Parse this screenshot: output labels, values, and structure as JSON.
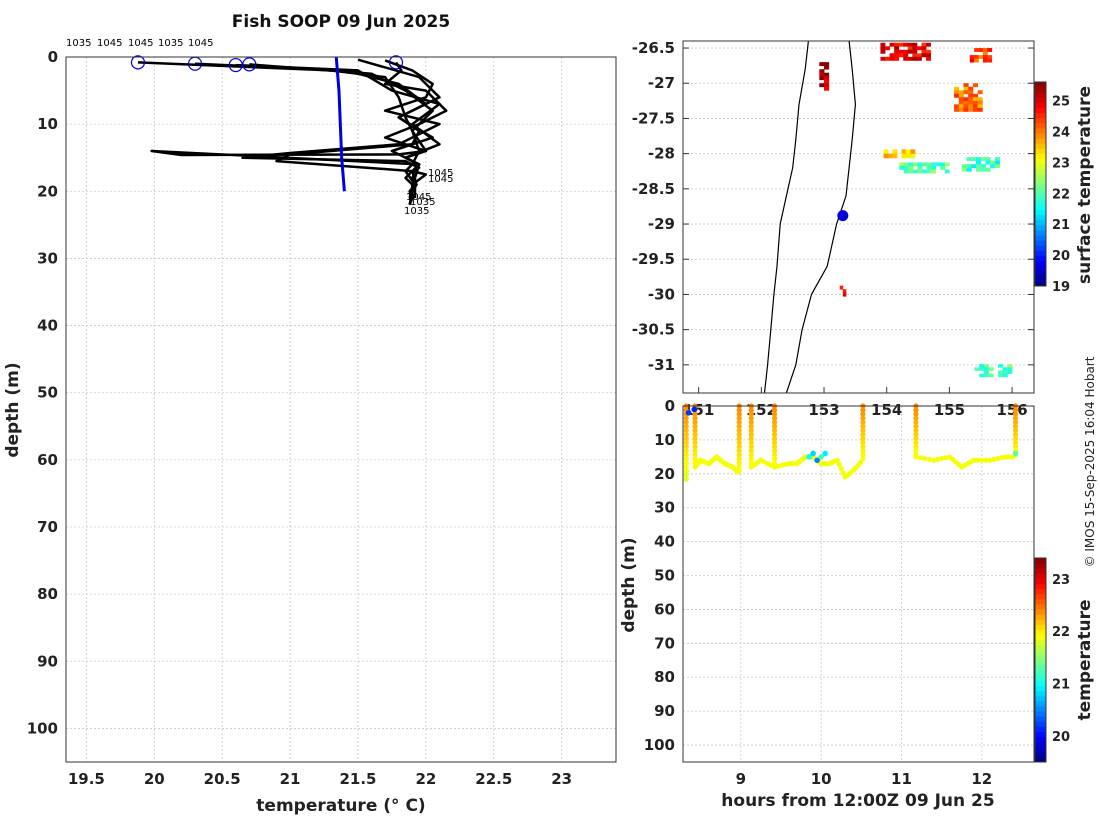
{
  "chart_data": [
    {
      "type": "line",
      "title": "Fish SOOP 09 Jun 2025",
      "xlabel": "temperature (° C)",
      "ylabel": "depth (m)",
      "xlim": [
        19.35,
        23.4
      ],
      "ylim": [
        105,
        0
      ],
      "xticks": [
        "19.5",
        "20",
        "20.5",
        "21",
        "21.5",
        "22",
        "22.5",
        "23"
      ],
      "yticks": [
        "0",
        "10",
        "20",
        "30",
        "40",
        "50",
        "60",
        "70",
        "80",
        "90",
        "100"
      ],
      "top_labels": [
        "1035",
        "1045",
        "1045",
        "1035",
        "1045"
      ],
      "end_labels": [
        "1045",
        "1045",
        "1035",
        "1045",
        "1035"
      ],
      "profiles": [
        {
          "name": "profile-1",
          "x": [
            19.88,
            21.3,
            21.7,
            21.8,
            21.85,
            21.9,
            21.95,
            21.9,
            21.85,
            21.92,
            21.88,
            21.9,
            21.88
          ],
          "y": [
            0.8,
            2,
            3,
            6,
            9,
            11,
            14,
            16,
            17,
            19,
            20,
            21,
            22
          ]
        },
        {
          "name": "profile-2",
          "x": [
            20.3,
            21.4,
            21.8,
            22.0,
            21.8,
            22.05,
            21.75,
            21.95,
            21.85,
            21.9,
            21.9,
            21.9
          ],
          "y": [
            1,
            2,
            4,
            7,
            9,
            12,
            14,
            16,
            18,
            19,
            20,
            21
          ]
        },
        {
          "name": "profile-3",
          "x": [
            20.6,
            21.5,
            21.75,
            22.1,
            21.9,
            22.1,
            21.85,
            21.95,
            21.9,
            21.93,
            21.9,
            21.88
          ],
          "y": [
            1.2,
            2,
            5,
            7,
            10,
            13,
            15,
            16,
            18,
            19,
            20,
            22
          ]
        },
        {
          "name": "profile-4",
          "x": [
            20.7,
            21.6,
            21.85,
            22.05,
            21.9,
            22.0,
            21.85,
            21.95,
            21.9,
            21.93,
            21.9,
            21.88
          ],
          "y": [
            1.1,
            2.5,
            5,
            8,
            11,
            14,
            15,
            16,
            18,
            19,
            20,
            21
          ]
        },
        {
          "name": "profile-5",
          "x": [
            21.78,
            21.82,
            21.7,
            22.0,
            22.15,
            21.95,
            21.7,
            21.85,
            22.0,
            21.8,
            20.2,
            19.98,
            21.95,
            21.92,
            21.92,
            21.92
          ],
          "y": [
            0.8,
            2,
            4,
            5,
            8,
            10,
            12,
            13,
            14,
            14.5,
            14.6,
            14,
            16,
            18,
            20,
            21
          ]
        },
        {
          "name": "profile-6",
          "x": [
            21.7,
            21.9,
            22.05,
            22.0,
            21.7,
            21.9,
            22.1,
            21.8,
            21.0,
            20.65,
            21.85,
            21.95,
            21.9,
            21.93,
            21.9,
            21.9
          ],
          "y": [
            0.5,
            2,
            4,
            6,
            8,
            9,
            10,
            13,
            14.3,
            15,
            15.5,
            16.5,
            17,
            19,
            20,
            21
          ]
        },
        {
          "name": "profile-7",
          "x": [
            21.5,
            21.95,
            22.1,
            21.8,
            21.95,
            21.9,
            21.0,
            20.9,
            21.9,
            22.0,
            21.9,
            21.9
          ],
          "y": [
            0.4,
            3,
            6,
            9,
            11,
            13,
            14.5,
            15.5,
            17,
            17.5,
            19,
            20
          ]
        }
      ],
      "markers": {
        "x": [
          19.88,
          20.3,
          20.6,
          20.7,
          21.78
        ],
        "y": [
          0.8,
          1.0,
          1.2,
          1.1,
          0.8
        ]
      },
      "climatology": {
        "x": [
          21.34,
          21.36,
          21.37,
          21.38,
          21.4
        ],
        "y": [
          0,
          5,
          10,
          15,
          20
        ]
      },
      "colors": {
        "profiles": "#000000",
        "climatology": "#0000dd",
        "markers": "#0000dd"
      }
    },
    {
      "type": "heatmap",
      "name": "surface-temperature-map",
      "xticks": [
        "151",
        "152",
        "153",
        "154",
        "155",
        "156"
      ],
      "yticks": [
        "-26.5",
        "-27",
        "-27.5",
        "-28",
        "-28.5",
        "-29",
        "-29.5",
        "-30",
        "-30.5",
        "-31"
      ],
      "xlim": [
        150.75,
        156.35
      ],
      "ylim": [
        -31.4,
        -26.4
      ],
      "colorbar_label": "surface temperature",
      "colorbar_ticks": [
        "19",
        "20",
        "21",
        "22",
        "23",
        "24",
        "25"
      ],
      "colorbar_range": [
        19,
        25.6
      ],
      "position_marker": {
        "lon": 153.3,
        "lat": -28.88,
        "color": "#0000dd"
      },
      "coastline_lon": [
        152.05,
        152.1,
        152.15,
        152.2,
        152.25,
        152.3,
        152.4,
        152.5,
        152.55,
        152.6,
        152.7,
        152.75
      ],
      "coastline_lat": [
        -31.4,
        -31.0,
        -30.5,
        -30.0,
        -29.6,
        -29.0,
        -28.6,
        -28.2,
        -27.8,
        -27.3,
        -26.8,
        -26.4
      ],
      "shelf_lon": [
        152.4,
        152.55,
        152.65,
        152.8,
        153.05,
        153.2,
        153.35,
        153.4,
        153.45,
        153.5,
        153.45,
        153.4
      ],
      "shelf_lat": [
        -31.4,
        -31.0,
        -30.5,
        -30.0,
        -29.6,
        -29.0,
        -28.6,
        -28.2,
        -27.8,
        -27.3,
        -26.8,
        -26.4
      ],
      "sst_patches": [
        {
          "lon": 154.3,
          "lat": -26.55,
          "w": 0.8,
          "h": 0.25,
          "temp": 24.8
        },
        {
          "lon": 155.5,
          "lat": -26.6,
          "w": 0.35,
          "h": 0.2,
          "temp": 24.3
        },
        {
          "lon": 155.3,
          "lat": -27.2,
          "w": 0.45,
          "h": 0.4,
          "temp": 24.0
        },
        {
          "lon": 153.0,
          "lat": -26.9,
          "w": 0.15,
          "h": 0.4,
          "temp": 25.2
        },
        {
          "lon": 154.2,
          "lat": -28.0,
          "w": 0.5,
          "h": 0.12,
          "temp": 23.4
        },
        {
          "lon": 154.6,
          "lat": -28.2,
          "w": 0.8,
          "h": 0.15,
          "temp": 22.0
        },
        {
          "lon": 155.5,
          "lat": -28.15,
          "w": 0.6,
          "h": 0.2,
          "temp": 21.8
        },
        {
          "lon": 155.7,
          "lat": -31.08,
          "w": 0.6,
          "h": 0.18,
          "temp": 21.9
        },
        {
          "lon": 153.3,
          "lat": -29.95,
          "w": 0.1,
          "h": 0.15,
          "temp": 24.5
        }
      ]
    },
    {
      "type": "scatter",
      "name": "depth-time-section",
      "xlabel": "hours from 12:00Z 09 Jun 25",
      "ylabel": "depth (m)",
      "xticks": [
        "9",
        "10",
        "11",
        "12"
      ],
      "yticks": [
        "0",
        "10",
        "20",
        "30",
        "40",
        "50",
        "60",
        "70",
        "80",
        "90",
        "100"
      ],
      "xlim": [
        8.28,
        12.65
      ],
      "ylim": [
        105,
        0
      ],
      "colorbar_label": "temperature",
      "colorbar_ticks": [
        "20",
        "21",
        "22",
        "23"
      ],
      "colorbar_range": [
        19.5,
        23.4
      ],
      "casts": [
        {
          "t": 8.32,
          "max_depth": 22,
          "bottom_temp": 21.8
        },
        {
          "t": 8.43,
          "max_depth": 18,
          "bottom_temp": 21.9
        },
        {
          "t": 8.98,
          "max_depth": 20,
          "bottom_temp": 21.9
        },
        {
          "t": 9.13,
          "max_depth": 18,
          "bottom_temp": 21.9
        },
        {
          "t": 9.42,
          "max_depth": 18,
          "bottom_temp": 21.9
        },
        {
          "t": 10.52,
          "max_depth": 16,
          "bottom_temp": 21.9
        },
        {
          "t": 11.18,
          "max_depth": 15,
          "bottom_temp": 21.9
        },
        {
          "t": 12.42,
          "max_depth": 15,
          "bottom_temp": 21.9
        }
      ],
      "tows": [
        {
          "t": [
            8.43,
            8.5,
            8.6,
            8.7,
            8.8,
            8.9,
            8.98
          ],
          "d": [
            18,
            16,
            17,
            15,
            17,
            18,
            20
          ]
        },
        {
          "t": [
            9.13,
            9.25,
            9.42
          ],
          "d": [
            18,
            16,
            18
          ]
        },
        {
          "t": [
            9.42,
            9.6,
            9.7,
            9.8,
            9.9,
            10.0,
            10.1,
            10.2,
            10.3,
            10.4,
            10.52
          ],
          "d": [
            18,
            17,
            17,
            15,
            15,
            17,
            17,
            16,
            21,
            19,
            16
          ]
        },
        {
          "t": [
            11.18,
            11.4,
            11.6,
            11.75,
            11.9,
            12.1,
            12.3,
            12.42
          ],
          "d": [
            15,
            16,
            15,
            18,
            16,
            16,
            15,
            15
          ]
        }
      ],
      "cool_points": {
        "t": [
          8.35,
          8.42,
          9.85,
          9.9,
          9.95,
          10.0,
          10.05,
          12.42
        ],
        "d": [
          2,
          1,
          15,
          14,
          16,
          15,
          14,
          14
        ],
        "temp": [
          20.2,
          20.1,
          21.0,
          20.8,
          20.5,
          21.2,
          20.9,
          21.3
        ]
      }
    }
  ],
  "credit": "© IMOS 15-Sep-2025 16:04 Hobart",
  "colors": {
    "background": "#ffffff",
    "frame": "#333333"
  }
}
